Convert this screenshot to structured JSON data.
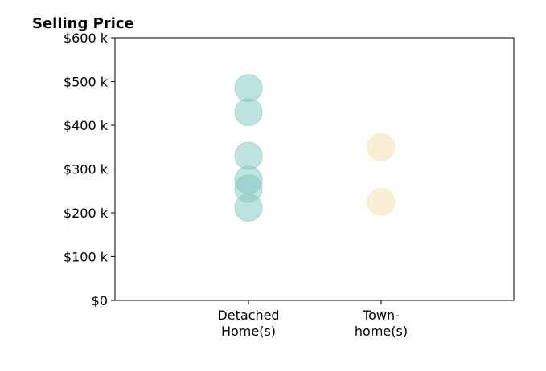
{
  "chart_data": {
    "type": "scatter",
    "title": "Selling Price",
    "xlabel": "",
    "ylabel": "",
    "categories": [
      [
        "Detached",
        "Home(s)"
      ],
      [
        "Town-",
        "home(s)"
      ]
    ],
    "ylim": [
      0,
      600
    ],
    "yticks": [
      0,
      100,
      200,
      300,
      400,
      500,
      600
    ],
    "ytick_labels": [
      "$0",
      "$100 k",
      "$200 k",
      "$300 k",
      "$400 k",
      "$500 k",
      "$600 k"
    ],
    "grid": false,
    "series": [
      {
        "category_index": 0,
        "values": [
          485,
          430,
          330,
          275,
          255,
          212
        ],
        "color": "#7fc7bd"
      },
      {
        "category_index": 1,
        "values": [
          350,
          225
        ],
        "color": "#f5dfac"
      }
    ]
  }
}
